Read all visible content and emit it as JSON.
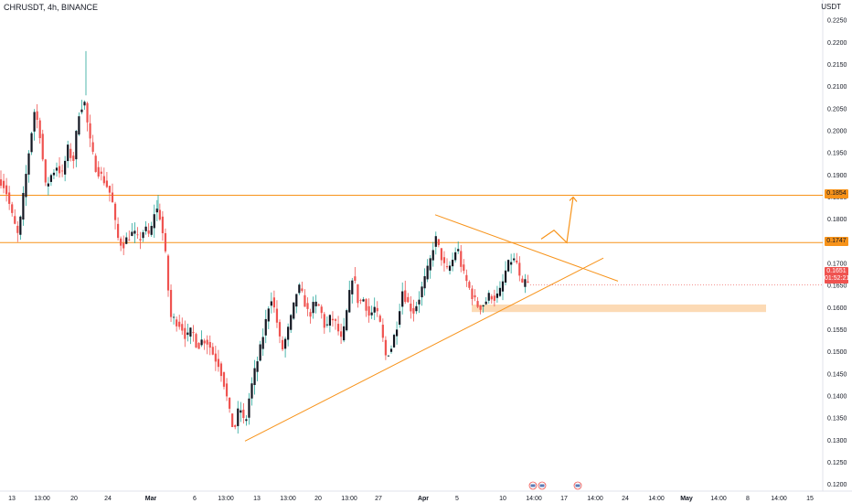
{
  "header": {
    "symbol": "CHRUSDT, 4h, BINANCE",
    "unit": "USDT"
  },
  "price_tags": [
    {
      "label": "0.1854",
      "color": "#f7931a"
    },
    {
      "label": "0.1747",
      "color": "#f7931a"
    },
    {
      "label": "0.1651",
      "color": "#ef5350"
    },
    {
      "label": "01:52:21",
      "color": "#ef5350"
    }
  ],
  "colors": {
    "up": "#26a69a",
    "down": "#ef5350",
    "body_up": "#131722",
    "annotation": "#f7931a",
    "zone": "#fbd3a8"
  },
  "chart_data": {
    "type": "candlestick",
    "timeframe": "4h",
    "y_ticks": [
      "0.2250",
      "0.2200",
      "0.2150",
      "0.2100",
      "0.2050",
      "0.2000",
      "0.1950",
      "0.1900",
      "0.1850",
      "0.1800",
      "0.1750",
      "0.1700",
      "0.1650",
      "0.1600",
      "0.1550",
      "0.1500",
      "0.1450",
      "0.1400",
      "0.1350",
      "0.1300",
      "0.1250",
      "0.1200"
    ],
    "ylim": [
      0.1185,
      0.2275
    ],
    "x_ticks": [
      {
        "label": "13",
        "bold": false
      },
      {
        "label": "13:00",
        "bold": false
      },
      {
        "label": "20",
        "bold": false
      },
      {
        "label": "24",
        "bold": false
      },
      {
        "label": "Mar",
        "bold": true
      },
      {
        "label": "6",
        "bold": false
      },
      {
        "label": "13:00",
        "bold": false
      },
      {
        "label": "13",
        "bold": false
      },
      {
        "label": "13:00",
        "bold": false
      },
      {
        "label": "20",
        "bold": false
      },
      {
        "label": "13:00",
        "bold": false
      },
      {
        "label": "27",
        "bold": false
      },
      {
        "label": "Apr",
        "bold": true
      },
      {
        "label": "5",
        "bold": false
      },
      {
        "label": "10",
        "bold": false
      },
      {
        "label": "14:00",
        "bold": false
      },
      {
        "label": "17",
        "bold": false
      },
      {
        "label": "14:00",
        "bold": false
      },
      {
        "label": "24",
        "bold": false
      },
      {
        "label": "14:00",
        "bold": false
      },
      {
        "label": "May",
        "bold": true
      },
      {
        "label": "14:00",
        "bold": false
      },
      {
        "label": "8",
        "bold": false
      },
      {
        "label": "14:00",
        "bold": false
      },
      {
        "label": "15",
        "bold": false
      }
    ],
    "horizontal_levels": [
      0.1854,
      0.1747
    ],
    "support_zone": [
      0.159,
      0.1607
    ],
    "last_price": 0.1651,
    "price_path": [
      [
        0,
        0.189
      ],
      [
        6,
        0.187
      ],
      [
        14,
        0.18
      ],
      [
        20,
        0.176
      ],
      [
        26,
        0.186
      ],
      [
        32,
        0.196
      ],
      [
        38,
        0.205
      ],
      [
        44,
        0.199
      ],
      [
        50,
        0.187
      ],
      [
        56,
        0.19
      ],
      [
        62,
        0.192
      ],
      [
        68,
        0.19
      ],
      [
        74,
        0.196
      ],
      [
        80,
        0.193
      ],
      [
        86,
        0.204
      ],
      [
        92,
        0.207
      ],
      [
        98,
        0.198
      ],
      [
        104,
        0.192
      ],
      [
        110,
        0.19
      ],
      [
        116,
        0.188
      ],
      [
        122,
        0.185
      ],
      [
        128,
        0.176
      ],
      [
        134,
        0.174
      ],
      [
        140,
        0.176
      ],
      [
        146,
        0.177
      ],
      [
        152,
        0.175
      ],
      [
        158,
        0.178
      ],
      [
        164,
        0.176
      ],
      [
        170,
        0.183
      ],
      [
        176,
        0.18
      ],
      [
        182,
        0.17
      ],
      [
        186,
        0.158
      ],
      [
        192,
        0.157
      ],
      [
        198,
        0.156
      ],
      [
        204,
        0.153
      ],
      [
        210,
        0.155
      ],
      [
        216,
        0.151
      ],
      [
        222,
        0.153
      ],
      [
        228,
        0.152
      ],
      [
        234,
        0.149
      ],
      [
        240,
        0.147
      ],
      [
        246,
        0.142
      ],
      [
        252,
        0.135
      ],
      [
        256,
        0.132
      ],
      [
        262,
        0.138
      ],
      [
        268,
        0.133
      ],
      [
        272,
        0.139
      ],
      [
        278,
        0.145
      ],
      [
        284,
        0.15
      ],
      [
        290,
        0.156
      ],
      [
        296,
        0.163
      ],
      [
        302,
        0.158
      ],
      [
        308,
        0.15
      ],
      [
        314,
        0.154
      ],
      [
        320,
        0.159
      ],
      [
        326,
        0.165
      ],
      [
        332,
        0.162
      ],
      [
        338,
        0.158
      ],
      [
        344,
        0.161
      ],
      [
        350,
        0.16
      ],
      [
        356,
        0.155
      ],
      [
        362,
        0.158
      ],
      [
        368,
        0.156
      ],
      [
        374,
        0.152
      ],
      [
        380,
        0.16
      ],
      [
        386,
        0.168
      ],
      [
        392,
        0.161
      ],
      [
        398,
        0.162
      ],
      [
        404,
        0.158
      ],
      [
        410,
        0.16
      ],
      [
        416,
        0.156
      ],
      [
        422,
        0.149
      ],
      [
        428,
        0.151
      ],
      [
        434,
        0.156
      ],
      [
        440,
        0.164
      ],
      [
        446,
        0.161
      ],
      [
        452,
        0.159
      ],
      [
        458,
        0.162
      ],
      [
        464,
        0.166
      ],
      [
        470,
        0.17
      ],
      [
        476,
        0.176
      ],
      [
        482,
        0.172
      ],
      [
        488,
        0.168
      ],
      [
        494,
        0.17
      ],
      [
        500,
        0.174
      ],
      [
        506,
        0.168
      ],
      [
        512,
        0.165
      ],
      [
        518,
        0.162
      ],
      [
        524,
        0.16
      ],
      [
        530,
        0.161
      ],
      [
        536,
        0.163
      ],
      [
        542,
        0.162
      ],
      [
        548,
        0.164
      ],
      [
        554,
        0.169
      ],
      [
        560,
        0.171
      ],
      [
        566,
        0.17
      ],
      [
        570,
        0.164
      ],
      [
        574,
        0.166
      ],
      [
        578,
        0.1651
      ]
    ],
    "projection": [
      [
        592,
        0.1755
      ],
      [
        606,
        0.1775
      ],
      [
        620,
        0.1747
      ],
      [
        627,
        0.185
      ]
    ],
    "upper_trendline": [
      [
        476,
        0.181
      ],
      [
        676,
        0.166
      ]
    ],
    "lower_trendline": [
      [
        268,
        0.1298
      ],
      [
        660,
        0.1712
      ]
    ]
  }
}
